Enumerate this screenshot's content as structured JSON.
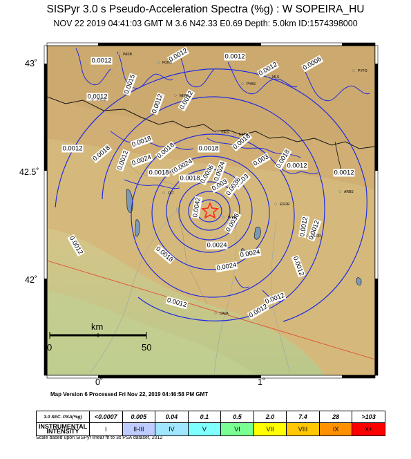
{
  "header": {
    "title": "SISPyr 3.0 s Pseudo-Acceleration Spectra (%g) : W SOPEIRA_HU",
    "subtitle": "NOV 22 2019 04:41:03 GMT   M 3.6   N42.33 E0.69   Depth: 5.0km   ID:1574398000"
  },
  "map": {
    "lat_labels": [
      "43˚",
      "42.5˚",
      "42˚"
    ],
    "lon_labels": [
      "0˚",
      "1˚"
    ],
    "scale_unit": "km",
    "scale_ticks": [
      "0",
      "50"
    ],
    "contour_labels": [
      "0.0012",
      "0.0015",
      "0.0012",
      "0.0012",
      "0.0006",
      "0.0012",
      "0.0012",
      "0.0012",
      "0.0012",
      "0.0018",
      "0.0018",
      "0.0018",
      "0.0018",
      "0.0024",
      "0.0024",
      "0.0012",
      "0.0018",
      "0.0018",
      "0.0024",
      "0.0024",
      "0.0012",
      "0.0018",
      "0.003",
      "0.003",
      "0.0036",
      "0.0036",
      "0.0042",
      "0.0036",
      "0.003",
      "0.0018",
      "0.0012",
      "0.0012",
      "0.0018",
      "0.0024",
      "0.0024",
      "0.0012",
      "0.0012",
      "0.0012",
      "0.0012",
      "0.0012",
      "0.0012",
      "0.0024",
      "0.0012"
    ],
    "towns": [
      "PASB",
      "FONS",
      "PYAS",
      "MLS",
      "PYFO",
      "PYLS",
      "MIMB",
      "VIES",
      "ESPR",
      "ARBS",
      "TREE",
      "ESOR",
      "PLOR",
      "CAVA",
      "OLT"
    ],
    "colors": {
      "land": "#d9b979",
      "plain": "#c8c98a",
      "contour": "#1f2be0",
      "water": "#7a9ab8",
      "epicenter": "#ff2a1a",
      "border": "#111111",
      "fault": "#e05030"
    },
    "epicenter_icon": "star-icon"
  },
  "footer": {
    "map_version": "Map Version 6 Processed Fri Nov 22, 2019 04:46:58 PM GMT",
    "scale_note": "Scale based upon SISPyr linear fit to 3s PSA dataset, 2012"
  },
  "legend": {
    "psa_header": "3.0 SEC. PSA(%g)",
    "intensity_header": "INSTRUMENTAL INTENSITY",
    "psa_values": [
      "<0.0007",
      "0.005",
      "0.04",
      "0.1",
      "0.5",
      "2.0",
      "7.4",
      "28",
      ">103"
    ],
    "intensity_values": [
      "I",
      "II-III",
      "IV",
      "V",
      "VI",
      "VII",
      "VIII",
      "IX",
      "X+"
    ],
    "intensity_colors": [
      "#ffffff",
      "#bfccff",
      "#a0e6ff",
      "#80ffff",
      "#7aff93",
      "#ffff00",
      "#ffc800",
      "#ff9100",
      "#ff0000"
    ]
  }
}
